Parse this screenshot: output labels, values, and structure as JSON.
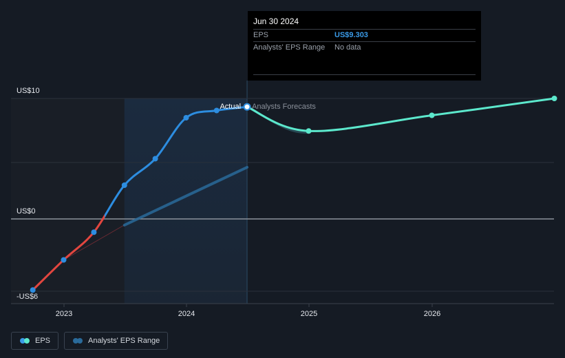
{
  "chart_data": {
    "type": "line",
    "y_ticks": [
      "US$10",
      "US$0",
      "-US$6"
    ],
    "x_ticks": [
      "2023",
      "2024",
      "2025",
      "2026"
    ],
    "ylim": [
      -6,
      10
    ],
    "grid": true,
    "legend_placement": "bottom-left",
    "annotations": {
      "actual": "Actual",
      "forecast": "Analysts Forecasts"
    },
    "series": [
      {
        "name": "EPS",
        "kind": "actual",
        "points": [
          {
            "x": "2022-09-30",
            "y": -5.9
          },
          {
            "x": "2022-12-31",
            "y": -3.4
          },
          {
            "x": "2023-03-31",
            "y": -1.1
          },
          {
            "x": "2023-06-30",
            "y": 2.8
          },
          {
            "x": "2023-09-30",
            "y": 5.0
          },
          {
            "x": "2023-12-31",
            "y": 8.4
          },
          {
            "x": "2024-03-31",
            "y": 9.0
          },
          {
            "x": "2024-06-30",
            "y": 9.303
          }
        ]
      },
      {
        "name": "EPS",
        "kind": "forecast",
        "points": [
          {
            "x": "2024-06-30",
            "y": 9.303
          },
          {
            "x": "2024-12-31",
            "y": 7.3
          },
          {
            "x": "2025-12-31",
            "y": 8.6
          },
          {
            "x": "2026-12-31",
            "y": 10.0
          }
        ]
      }
    ],
    "colors": {
      "negative": "#e2463f",
      "actual": "#2d8de0",
      "forecast": "#5ce8cc",
      "trend": "#2a6a9a",
      "grid": "#2a313b",
      "zero_line": "#8d939c",
      "past_shade": "#191e26",
      "focus_band": "#1b2b3f"
    }
  },
  "tooltip": {
    "date": "Jun 30 2024",
    "eps_label": "EPS",
    "eps_value": "US$9.303",
    "range_label": "Analysts' EPS Range",
    "range_value": "No data"
  },
  "legend": {
    "eps": {
      "label": "EPS",
      "colors": [
        "#3a9be8",
        "#5ce8cc"
      ]
    },
    "range": {
      "label": "Analysts' EPS Range",
      "colors": [
        "#2a6a9a",
        "#2a6a9a"
      ]
    }
  }
}
